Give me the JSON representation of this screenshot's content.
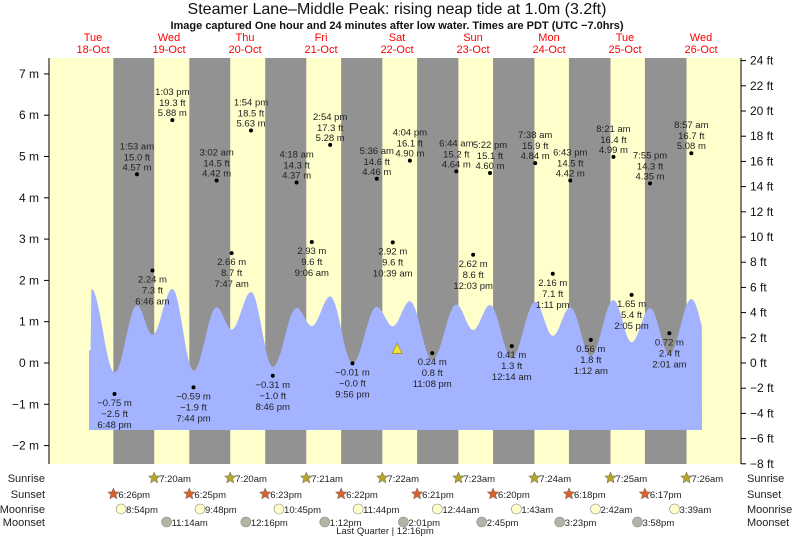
{
  "chart_data": {
    "type": "area",
    "title": "Steamer Lane–Middle Peak: rising  neap tide at 1.0m (3.2ft)",
    "subtitle": "Image captured One hour and 24 minutes after low water. Times are PDT (UTC −7.0hrs)",
    "days": [
      {
        "dow": "Tue",
        "date": "18-Oct"
      },
      {
        "dow": "Wed",
        "date": "19-Oct"
      },
      {
        "dow": "Thu",
        "date": "20-Oct"
      },
      {
        "dow": "Fri",
        "date": "21-Oct"
      },
      {
        "dow": "Sat",
        "date": "22-Oct"
      },
      {
        "dow": "Sun",
        "date": "23-Oct"
      },
      {
        "dow": "Mon",
        "date": "24-Oct"
      },
      {
        "dow": "Tue",
        "date": "25-Oct"
      },
      {
        "dow": "Wed",
        "date": "26-Oct"
      }
    ],
    "left_axis": {
      "unit": "m",
      "ylim": [
        -2,
        7
      ],
      "ticks": [
        "7 m",
        "6 m",
        "5 m",
        "4 m",
        "3 m",
        "2 m",
        "1 m",
        "0 m",
        "−1 m",
        "−2 m"
      ],
      "tick_values": [
        7,
        6,
        5,
        4,
        3,
        2,
        1,
        0,
        -1,
        -2
      ]
    },
    "right_axis": {
      "unit": "ft",
      "ylim": [
        -8,
        24
      ],
      "ticks": [
        "24 ft",
        "22 ft",
        "20 ft",
        "18 ft",
        "16 ft",
        "14 ft",
        "12 ft",
        "10 ft",
        "8 ft",
        "6 ft",
        "4 ft",
        "2 ft",
        "0 ft",
        "−2 ft",
        "−4 ft",
        "−6 ft",
        "−8 ft"
      ],
      "tick_values": [
        24,
        22,
        20,
        18,
        16,
        14,
        12,
        10,
        8,
        6,
        4,
        2,
        0,
        -2,
        -4,
        -6,
        -8
      ]
    },
    "tides": [
      {
        "day": "18-Oct",
        "time": "6:48 pm",
        "m": -0.75,
        "m_label": "−0.75 m",
        "ft_label": "−2.5 ft",
        "type": "low"
      },
      {
        "day": "19-Oct",
        "time": "1:53 am",
        "m": 4.57,
        "m_label": "4.57 m",
        "ft_label": "15.0 ft",
        "type": "high"
      },
      {
        "day": "19-Oct",
        "time": "6:46 am",
        "m": 2.24,
        "m_label": "2.24 m",
        "ft_label": "7.3 ft",
        "type": "low"
      },
      {
        "day": "19-Oct",
        "time": "1:03 pm",
        "m": 5.88,
        "m_label": "5.88 m",
        "ft_label": "19.3 ft",
        "type": "high"
      },
      {
        "day": "19-Oct",
        "time": "7:44 pm",
        "m": -0.59,
        "m_label": "−0.59 m",
        "ft_label": "−1.9 ft",
        "type": "low"
      },
      {
        "day": "20-Oct",
        "time": "3:02 am",
        "m": 4.42,
        "m_label": "4.42 m",
        "ft_label": "14.5 ft",
        "type": "high"
      },
      {
        "day": "20-Oct",
        "time": "7:47 am",
        "m": 2.66,
        "m_label": "2.66 m",
        "ft_label": "8.7 ft",
        "type": "low"
      },
      {
        "day": "20-Oct",
        "time": "1:54 pm",
        "m": 5.63,
        "m_label": "5.63 m",
        "ft_label": "18.5 ft",
        "type": "high"
      },
      {
        "day": "20-Oct",
        "time": "8:46 pm",
        "m": -0.31,
        "m_label": "−0.31 m",
        "ft_label": "−1.0 ft",
        "type": "low"
      },
      {
        "day": "21-Oct",
        "time": "4:18 am",
        "m": 4.37,
        "m_label": "4.37 m",
        "ft_label": "14.3 ft",
        "type": "high"
      },
      {
        "day": "21-Oct",
        "time": "9:06 am",
        "m": 2.93,
        "m_label": "2.93 m",
        "ft_label": "9.6 ft",
        "type": "low"
      },
      {
        "day": "21-Oct",
        "time": "2:54 pm",
        "m": 5.28,
        "m_label": "5.28 m",
        "ft_label": "17.3 ft",
        "type": "high"
      },
      {
        "day": "21-Oct",
        "time": "9:56 pm",
        "m": -0.01,
        "m_label": "−0.01 m",
        "ft_label": "−0.0 ft",
        "type": "low"
      },
      {
        "day": "22-Oct",
        "time": "5:36 am",
        "m": 4.46,
        "m_label": "4.46 m",
        "ft_label": "14.6 ft",
        "type": "high"
      },
      {
        "day": "22-Oct",
        "time": "10:39 am",
        "m": 2.92,
        "m_label": "2.92 m",
        "ft_label": "9.6 ft",
        "type": "low"
      },
      {
        "day": "22-Oct",
        "time": "4:04 pm",
        "m": 4.9,
        "m_label": "4.90 m",
        "ft_label": "16.1 ft",
        "type": "high"
      },
      {
        "day": "22-Oct",
        "time": "11:08 pm",
        "m": 0.24,
        "m_label": "0.24 m",
        "ft_label": "0.8 ft",
        "type": "low"
      },
      {
        "day": "23-Oct",
        "time": "6:44 am",
        "m": 4.64,
        "m_label": "4.64 m",
        "ft_label": "15.2 ft",
        "type": "high"
      },
      {
        "day": "23-Oct",
        "time": "12:03 pm",
        "m": 2.62,
        "m_label": "2.62 m",
        "ft_label": "8.6 ft",
        "type": "low"
      },
      {
        "day": "23-Oct",
        "time": "5:22 pm",
        "m": 4.6,
        "m_label": "4.60 m",
        "ft_label": "15.1 ft",
        "type": "high"
      },
      {
        "day": "24-Oct",
        "time": "12:14 am",
        "m": 0.41,
        "m_label": "0.41 m",
        "ft_label": "1.3 ft",
        "type": "low"
      },
      {
        "day": "24-Oct",
        "time": "7:38 am",
        "m": 4.84,
        "m_label": "4.84 m",
        "ft_label": "15.9 ft",
        "type": "high"
      },
      {
        "day": "24-Oct",
        "time": "1:11 pm",
        "m": 2.16,
        "m_label": "2.16 m",
        "ft_label": "7.1 ft",
        "type": "low"
      },
      {
        "day": "24-Oct",
        "time": "6:43 pm",
        "m": 4.42,
        "m_label": "4.42 m",
        "ft_label": "14.5 ft",
        "type": "high"
      },
      {
        "day": "25-Oct",
        "time": "1:12 am",
        "m": 0.56,
        "m_label": "0.56 m",
        "ft_label": "1.8 ft",
        "type": "low"
      },
      {
        "day": "25-Oct",
        "time": "8:21 am",
        "m": 4.99,
        "m_label": "4.99 m",
        "ft_label": "16.4 ft",
        "type": "high"
      },
      {
        "day": "25-Oct",
        "time": "2:05 pm",
        "m": 1.65,
        "m_label": "1.65 m",
        "ft_label": "5.4 ft",
        "type": "low"
      },
      {
        "day": "25-Oct",
        "time": "7:55 pm",
        "m": 4.35,
        "m_label": "4.35 m",
        "ft_label": "14.3 ft",
        "type": "high"
      },
      {
        "day": "26-Oct",
        "time": "2:01 am",
        "m": 0.72,
        "m_label": "0.72 m",
        "ft_label": "2.4 ft",
        "type": "low"
      },
      {
        "day": "26-Oct",
        "time": "8:57 am",
        "m": 5.08,
        "m_label": "5.08 m",
        "ft_label": "16.7 ft",
        "type": "high"
      }
    ],
    "current_level_m": 1.0,
    "colors": {
      "day": "#ffffcc",
      "night": "#929292",
      "water": "#a3b3ff",
      "day_label": "#ff0000",
      "sunrise": "#b5a52a",
      "sunset": "#d9622b",
      "moonrise": "#ffffcc",
      "moonset": "#b4b4a4",
      "marker": "#f2e13a"
    },
    "grid": false
  },
  "astro": {
    "rows": [
      {
        "label": "Sunrise",
        "icon": "sunrise-star-icon",
        "events": [
          {
            "day": "19-Oct",
            "time": "7:20am"
          },
          {
            "day": "20-Oct",
            "time": "7:20am"
          },
          {
            "day": "21-Oct",
            "time": "7:21am"
          },
          {
            "day": "22-Oct",
            "time": "7:22am"
          },
          {
            "day": "23-Oct",
            "time": "7:23am"
          },
          {
            "day": "24-Oct",
            "time": "7:24am"
          },
          {
            "day": "25-Oct",
            "time": "7:25am"
          },
          {
            "day": "26-Oct",
            "time": "7:26am"
          }
        ]
      },
      {
        "label": "Sunset",
        "icon": "sunset-star-icon",
        "events": [
          {
            "day": "18-Oct",
            "time": "6:26pm"
          },
          {
            "day": "19-Oct",
            "time": "6:25pm"
          },
          {
            "day": "20-Oct",
            "time": "6:23pm"
          },
          {
            "day": "21-Oct",
            "time": "6:22pm"
          },
          {
            "day": "22-Oct",
            "time": "6:21pm"
          },
          {
            "day": "23-Oct",
            "time": "6:20pm"
          },
          {
            "day": "24-Oct",
            "time": "6:18pm"
          },
          {
            "day": "25-Oct",
            "time": "6:17pm"
          }
        ]
      },
      {
        "label": "Moonrise",
        "icon": "moonrise-circle-icon",
        "events": [
          {
            "day": "18-Oct",
            "time": "8:54pm"
          },
          {
            "day": "19-Oct",
            "time": "9:48pm"
          },
          {
            "day": "20-Oct",
            "time": "10:45pm"
          },
          {
            "day": "21-Oct",
            "time": "11:44pm"
          },
          {
            "day": "23-Oct",
            "time": "12:44am"
          },
          {
            "day": "24-Oct",
            "time": "1:43am"
          },
          {
            "day": "25-Oct",
            "time": "2:42am"
          },
          {
            "day": "26-Oct",
            "time": "3:39am"
          }
        ]
      },
      {
        "label": "Moonset",
        "icon": "moonset-circle-icon",
        "events": [
          {
            "day": "19-Oct",
            "time": "11:14am"
          },
          {
            "day": "20-Oct",
            "time": "12:16pm"
          },
          {
            "day": "21-Oct",
            "time": "1:12pm"
          },
          {
            "day": "22-Oct",
            "time": "2:01pm"
          },
          {
            "day": "23-Oct",
            "time": "2:45pm"
          },
          {
            "day": "24-Oct",
            "time": "3:23pm"
          },
          {
            "day": "25-Oct",
            "time": "3:58pm"
          }
        ]
      }
    ],
    "moon_phase": "Last Quarter | 12:16pm"
  }
}
